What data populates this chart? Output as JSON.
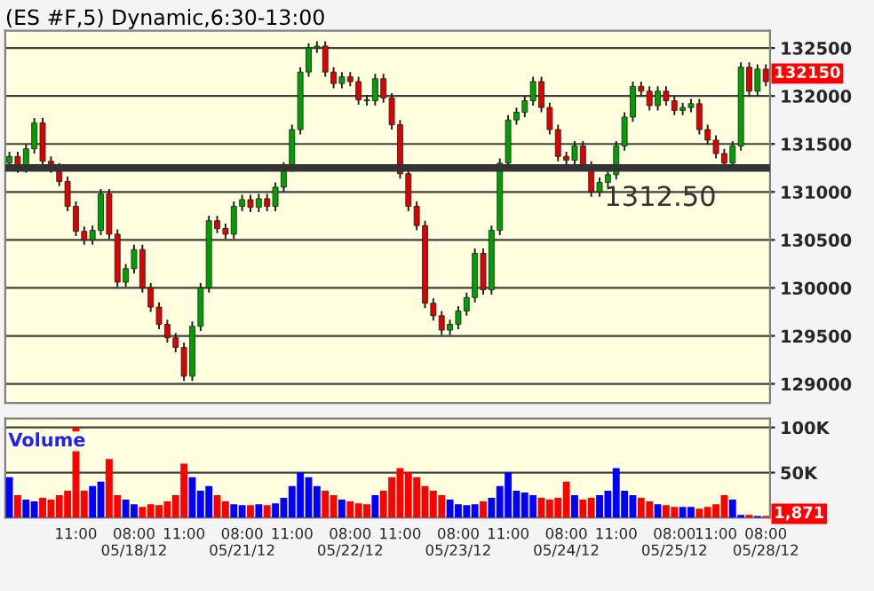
{
  "chart_data": [
    {
      "type": "candlestick",
      "title": "(ES #F,5) Dynamic,6:30-13:00",
      "categories": [
        null,
        null,
        null,
        null,
        null,
        null,
        null,
        null,
        null,
        null,
        null,
        null,
        null,
        null,
        null,
        null,
        null,
        null,
        null,
        null,
        null,
        null,
        null,
        null,
        null,
        null,
        null,
        null,
        null,
        null,
        null,
        null,
        null,
        null,
        null,
        null,
        null,
        null,
        null,
        null,
        null,
        null,
        null,
        null,
        null,
        null,
        null,
        null,
        null,
        null,
        null,
        null,
        null,
        null,
        null,
        null,
        null,
        null,
        null,
        null,
        null,
        null,
        null,
        null,
        null,
        null,
        null,
        null,
        null,
        null,
        null,
        null,
        null,
        null,
        null,
        null,
        null,
        null,
        null,
        null,
        null,
        null,
        null,
        null,
        null,
        null,
        null,
        null,
        null,
        null,
        null,
        null
      ],
      "ohlc": [
        [
          131300,
          131420,
          131250,
          131370
        ],
        [
          131370,
          131420,
          131200,
          131250
        ],
        [
          131250,
          131500,
          131200,
          131450
        ],
        [
          131450,
          131770,
          131400,
          131720
        ],
        [
          131720,
          131770,
          131270,
          131320
        ],
        [
          131320,
          131370,
          131200,
          131250
        ],
        [
          131250,
          131300,
          131060,
          131110
        ],
        [
          131110,
          131160,
          130800,
          130850
        ],
        [
          130850,
          130900,
          130540,
          130590
        ],
        [
          130590,
          130640,
          130450,
          130500
        ],
        [
          130500,
          130650,
          130450,
          130600
        ],
        [
          130600,
          131030,
          130550,
          130980
        ],
        [
          130980,
          131030,
          130510,
          130560
        ],
        [
          130560,
          130610,
          130010,
          130060
        ],
        [
          130060,
          130250,
          130010,
          130200
        ],
        [
          130200,
          130450,
          130150,
          130400
        ],
        [
          130400,
          130450,
          129950,
          130000
        ],
        [
          130000,
          130050,
          129750,
          129800
        ],
        [
          129800,
          129850,
          129570,
          129620
        ],
        [
          129620,
          129670,
          129430,
          129480
        ],
        [
          129480,
          129530,
          129330,
          129380
        ],
        [
          129380,
          129430,
          129030,
          129080
        ],
        [
          129080,
          129650,
          129030,
          129600
        ],
        [
          129600,
          130050,
          129550,
          130000
        ],
        [
          130000,
          130750,
          129950,
          130700
        ],
        [
          130700,
          130750,
          130570,
          130620
        ],
        [
          130620,
          130670,
          130510,
          130560
        ],
        [
          130560,
          130900,
          130510,
          130850
        ],
        [
          130850,
          130970,
          130800,
          130920
        ],
        [
          130920,
          130970,
          130790,
          130840
        ],
        [
          130840,
          130980,
          130790,
          130930
        ],
        [
          130930,
          130980,
          130800,
          130850
        ],
        [
          130850,
          131100,
          130800,
          131050
        ],
        [
          131050,
          131310,
          131000,
          131260
        ],
        [
          131260,
          131700,
          131210,
          131650
        ],
        [
          131650,
          132300,
          131600,
          132250
        ],
        [
          132250,
          132550,
          132200,
          132500
        ],
        [
          132500,
          132570,
          132450,
          132520
        ],
        [
          132520,
          132570,
          132200,
          132250
        ],
        [
          132250,
          132300,
          132080,
          132130
        ],
        [
          132130,
          132250,
          132080,
          132200
        ],
        [
          132200,
          132250,
          132100,
          132150
        ],
        [
          132150,
          132200,
          131910,
          131960
        ],
        [
          131960,
          132010,
          131900,
          131950
        ],
        [
          131950,
          132230,
          131900,
          132180
        ],
        [
          132180,
          132230,
          131930,
          131980
        ],
        [
          131980,
          132030,
          131650,
          131700
        ],
        [
          131700,
          131750,
          131140,
          131190
        ],
        [
          131190,
          131240,
          130800,
          130850
        ],
        [
          130850,
          130900,
          130600,
          130650
        ],
        [
          130650,
          130700,
          129790,
          129840
        ],
        [
          129840,
          129890,
          129660,
          129710
        ],
        [
          129710,
          129760,
          129510,
          129560
        ],
        [
          129560,
          129670,
          129510,
          129620
        ],
        [
          129620,
          129810,
          129570,
          129760
        ],
        [
          129760,
          129950,
          129710,
          129900
        ],
        [
          129900,
          130410,
          129850,
          130360
        ],
        [
          130360,
          130410,
          129930,
          129980
        ],
        [
          129980,
          130650,
          129930,
          130600
        ],
        [
          130600,
          131350,
          130550,
          131300
        ],
        [
          131300,
          131800,
          131250,
          131750
        ],
        [
          131750,
          131880,
          131700,
          131830
        ],
        [
          131830,
          132000,
          131780,
          131950
        ],
        [
          131950,
          132200,
          131900,
          132150
        ],
        [
          132150,
          132200,
          131830,
          131880
        ],
        [
          131880,
          131930,
          131600,
          131650
        ],
        [
          131650,
          131700,
          131320,
          131370
        ],
        [
          131370,
          131420,
          131280,
          131330
        ],
        [
          131330,
          131530,
          131280,
          131480
        ],
        [
          131480,
          131530,
          131220,
          131270
        ],
        [
          131270,
          131320,
          130950,
          131000
        ],
        [
          131000,
          131150,
          130950,
          131100
        ],
        [
          131100,
          131230,
          131050,
          131180
        ],
        [
          131180,
          131530,
          131130,
          131480
        ],
        [
          131480,
          131830,
          131430,
          131780
        ],
        [
          131780,
          132150,
          131730,
          132100
        ],
        [
          132100,
          132150,
          132000,
          132050
        ],
        [
          132050,
          132100,
          131850,
          131900
        ],
        [
          131900,
          132100,
          131850,
          132050
        ],
        [
          132050,
          132100,
          131900,
          131950
        ],
        [
          131950,
          132000,
          131800,
          131850
        ],
        [
          131850,
          131930,
          131800,
          131880
        ],
        [
          131880,
          131970,
          131830,
          131920
        ],
        [
          131920,
          131970,
          131600,
          131650
        ],
        [
          131650,
          131700,
          131490,
          131540
        ],
        [
          131540,
          131590,
          131350,
          131400
        ],
        [
          131400,
          131450,
          131250,
          131300
        ],
        [
          131300,
          131530,
          131250,
          131480
        ],
        [
          131480,
          132350,
          131430,
          132300
        ],
        [
          132300,
          132350,
          132000,
          132050
        ],
        [
          132050,
          132330,
          132000,
          132280
        ],
        [
          132280,
          132330,
          132100,
          132150
        ]
      ],
      "colors": [
        "#00a000",
        "#e00000",
        "#00a000",
        "#00a000",
        "#e00000",
        "#e00000",
        "#e00000",
        "#e00000",
        "#e00000",
        "#e00000",
        "#00a000",
        "#00a000",
        "#e00000",
        "#e00000",
        "#00a000",
        "#00a000",
        "#e00000",
        "#e00000",
        "#e00000",
        "#e00000",
        "#e00000",
        "#e00000",
        "#00a000",
        "#00a000",
        "#00a000",
        "#e00000",
        "#e00000",
        "#00a000",
        "#00a000",
        "#e00000",
        "#00a000",
        "#e00000",
        "#00a000",
        "#00a000",
        "#00a000",
        "#00a000",
        "#00a000",
        "#00a000",
        "#e00000",
        "#e00000",
        "#00a000",
        "#e00000",
        "#e00000",
        "#e00000",
        "#00a000",
        "#e00000",
        "#e00000",
        "#e00000",
        "#e00000",
        "#e00000",
        "#e00000",
        "#e00000",
        "#e00000",
        "#00a000",
        "#00a000",
        "#00a000",
        "#00a000",
        "#e00000",
        "#00a000",
        "#00a000",
        "#00a000",
        "#00a000",
        "#00a000",
        "#00a000",
        "#e00000",
        "#e00000",
        "#e00000",
        "#e00000",
        "#00a000",
        "#e00000",
        "#e00000",
        "#00a000",
        "#00a000",
        "#00a000",
        "#00a000",
        "#00a000",
        "#e00000",
        "#e00000",
        "#00a000",
        "#e00000",
        "#e00000",
        "#00a000",
        "#00a000",
        "#e00000",
        "#e00000",
        "#e00000",
        "#e00000",
        "#00a000",
        "#00a000",
        "#e00000",
        "#00a000",
        "#e00000"
      ],
      "ylim": [
        128800,
        132680
      ],
      "yticks": [
        129000,
        129500,
        130000,
        130500,
        131000,
        131500,
        132000,
        132500
      ],
      "tick_labels": "y",
      "grid": "y",
      "ref_lines": [
        {
          "axis": "y",
          "value": 131250,
          "color": "#333333",
          "line_style": "solid"
        }
      ],
      "annotations": [
        "1312.50",
        "132150"
      ]
    },
    {
      "type": "bar",
      "title": "Volume",
      "categories": [
        null,
        null,
        null,
        null,
        null,
        null,
        null,
        null,
        "11:00",
        null,
        null,
        null,
        null,
        null,
        null,
        "08:00\n05/18/12",
        null,
        null,
        null,
        null,
        null,
        "11:00",
        null,
        null,
        null,
        null,
        null,
        null,
        "08:00\n05/21/12",
        null,
        null,
        null,
        null,
        null,
        "11:00",
        null,
        null,
        null,
        null,
        null,
        null,
        "08:00\n05/22/12",
        null,
        null,
        null,
        null,
        null,
        "11:00",
        null,
        null,
        null,
        null,
        null,
        null,
        "08:00\n05/23/12",
        null,
        null,
        null,
        null,
        null,
        "11:00",
        null,
        null,
        null,
        null,
        null,
        null,
        "08:00\n05/24/12",
        null,
        null,
        null,
        null,
        null,
        "11:00",
        null,
        null,
        null,
        null,
        null,
        null,
        "08:00\n05/25/12",
        null,
        null,
        null,
        null,
        "11:00",
        null,
        null,
        null,
        null,
        null,
        "08:00\n05/28/12"
      ],
      "values": [
        45000,
        25000,
        20000,
        18000,
        22000,
        20000,
        25000,
        30000,
        100000,
        30000,
        35000,
        40000,
        65000,
        25000,
        20000,
        15000,
        12000,
        15000,
        14000,
        18000,
        25000,
        60000,
        45000,
        30000,
        35000,
        25000,
        18000,
        15000,
        14000,
        14000,
        15000,
        14000,
        16000,
        22000,
        35000,
        50000,
        45000,
        35000,
        30000,
        25000,
        20000,
        18000,
        16000,
        15000,
        25000,
        30000,
        45000,
        55000,
        50000,
        45000,
        35000,
        30000,
        25000,
        20000,
        15000,
        14000,
        15000,
        18000,
        22000,
        35000,
        50000,
        30000,
        28000,
        25000,
        22000,
        20000,
        22000,
        40000,
        25000,
        20000,
        22000,
        25000,
        30000,
        55000,
        30000,
        25000,
        22000,
        18000,
        15000,
        14000,
        12000,
        12000,
        12000,
        10000,
        12000,
        15000,
        25000,
        20000,
        3000,
        3000,
        2000,
        1871
      ],
      "colors": [
        "#0000ff",
        "#ff0000",
        "#0000ff",
        "#0000ff",
        "#ff0000",
        "#ff0000",
        "#ff0000",
        "#ff0000",
        "#ff0000",
        "#ff0000",
        "#0000ff",
        "#0000ff",
        "#ff0000",
        "#ff0000",
        "#0000ff",
        "#0000ff",
        "#ff0000",
        "#ff0000",
        "#ff0000",
        "#ff0000",
        "#ff0000",
        "#ff0000",
        "#0000ff",
        "#0000ff",
        "#0000ff",
        "#ff0000",
        "#ff0000",
        "#0000ff",
        "#0000ff",
        "#ff0000",
        "#0000ff",
        "#ff0000",
        "#0000ff",
        "#0000ff",
        "#0000ff",
        "#0000ff",
        "#0000ff",
        "#0000ff",
        "#ff0000",
        "#ff0000",
        "#0000ff",
        "#ff0000",
        "#ff0000",
        "#ff0000",
        "#0000ff",
        "#ff0000",
        "#ff0000",
        "#ff0000",
        "#ff0000",
        "#ff0000",
        "#ff0000",
        "#ff0000",
        "#ff0000",
        "#0000ff",
        "#0000ff",
        "#0000ff",
        "#0000ff",
        "#ff0000",
        "#0000ff",
        "#0000ff",
        "#0000ff",
        "#0000ff",
        "#0000ff",
        "#0000ff",
        "#ff0000",
        "#ff0000",
        "#ff0000",
        "#ff0000",
        "#0000ff",
        "#ff0000",
        "#ff0000",
        "#0000ff",
        "#0000ff",
        "#0000ff",
        "#0000ff",
        "#0000ff",
        "#ff0000",
        "#ff0000",
        "#0000ff",
        "#ff0000",
        "#ff0000",
        "#0000ff",
        "#0000ff",
        "#ff0000",
        "#ff0000",
        "#ff0000",
        "#ff0000",
        "#0000ff",
        "#0000ff",
        "#ff0000",
        "#0000ff",
        "#ff0000"
      ],
      "ylim": [
        0,
        110000
      ],
      "yticks": [
        {
          "value": 50000,
          "label": "50K"
        },
        {
          "value": 100000,
          "label": "100K"
        }
      ],
      "grid": "y",
      "annotations": [
        "1,871"
      ]
    }
  ]
}
